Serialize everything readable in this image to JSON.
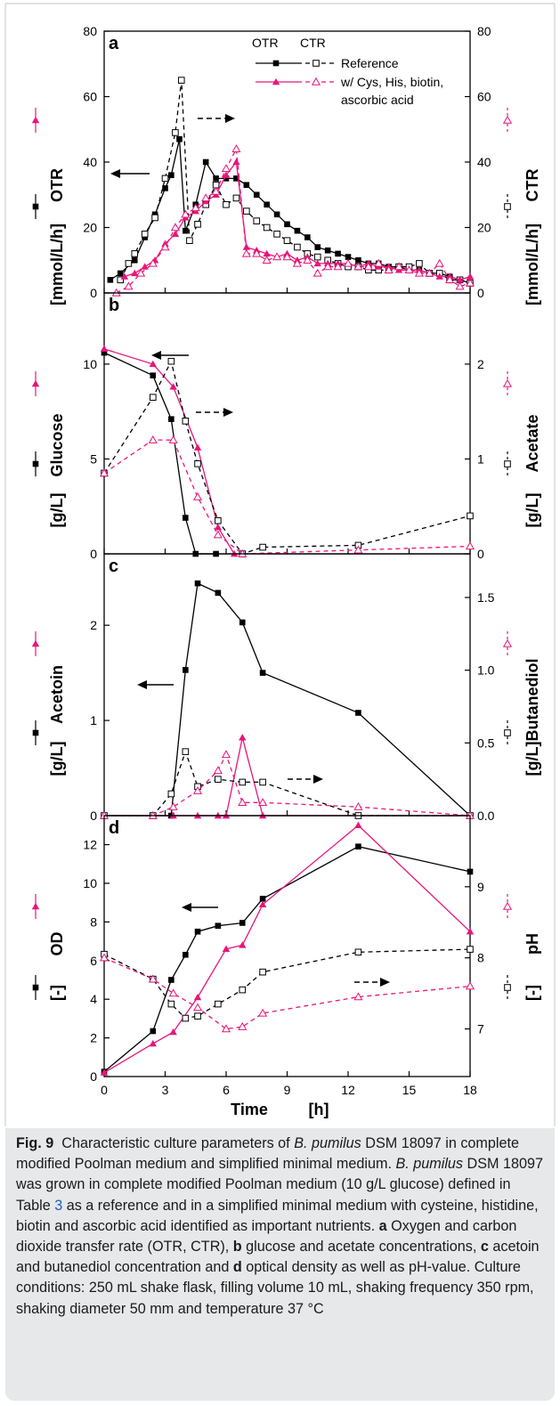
{
  "colors": {
    "reference": "#000000",
    "treatment": "#e8157a",
    "caption_bg": "#e7e8e9",
    "link": "#1f5fbf"
  },
  "figure": {
    "x_axis": {
      "label": "Time",
      "unit": "[h]",
      "ticks": [
        "0",
        "3",
        "6",
        "9",
        "12",
        "15",
        "18"
      ],
      "range": [
        0,
        18
      ]
    },
    "panels": [
      {
        "letter": "a",
        "y_left": {
          "label": "OTR",
          "unit": "[mmol/L/h]",
          "range": [
            0,
            80
          ],
          "ticks": [
            "0",
            "20",
            "40",
            "60",
            "80"
          ]
        },
        "y_right": {
          "label": "CTR",
          "unit": "[mmol/L/h]",
          "range": [
            0,
            80
          ],
          "ticks": [
            "0",
            "20",
            "40",
            "60",
            "80"
          ]
        },
        "legend": {
          "col_left": "OTR",
          "col_right": "CTR",
          "entries": [
            "Reference",
            "w/ Cys, His, biotin,",
            "ascorbic acid"
          ]
        }
      },
      {
        "letter": "b",
        "y_left": {
          "label": "Glucose",
          "unit": "[g/L]",
          "range": [
            0,
            13.75
          ],
          "ticks": [
            "0",
            "5",
            "10"
          ]
        },
        "y_right": {
          "label": "Acetate",
          "unit": "[g/L]",
          "range": [
            0,
            2.75
          ],
          "ticks": [
            "0",
            "1",
            "2"
          ]
        }
      },
      {
        "letter": "c",
        "y_left": {
          "label": "Acetoin",
          "unit": "[g/L]",
          "range": [
            0,
            2.75
          ],
          "ticks": [
            "0",
            "1",
            "2"
          ]
        },
        "y_right": {
          "label": "Butanediol",
          "unit": "[g/L]",
          "range": [
            0,
            1.8
          ],
          "ticks": [
            "0.0",
            "0.5",
            "1.0",
            "1.5"
          ]
        }
      },
      {
        "letter": "d",
        "y_left": {
          "label": "OD",
          "unit": "[-]",
          "range": [
            0,
            13.5
          ],
          "ticks": [
            "0",
            "2",
            "4",
            "6",
            "8",
            "10",
            "12"
          ]
        },
        "y_right": {
          "label": "pH",
          "unit": "[-]",
          "range": [
            6.33,
            10.0
          ],
          "ticks": [
            "7",
            "8",
            "9"
          ]
        }
      }
    ]
  },
  "chart_data": [
    {
      "type": "line",
      "panel": "a",
      "xlim": [
        0,
        18
      ],
      "ylim_left": [
        0,
        80
      ],
      "ylim_right": [
        0,
        80
      ],
      "series": [
        {
          "name": "OTR Reference",
          "axis": "left",
          "style": "solid",
          "marker": "filled-square",
          "color": "#000000",
          "x": [
            0.3,
            0.8,
            1.5,
            2.0,
            2.5,
            3.0,
            3.3,
            3.7,
            4.0,
            4.5,
            5.0,
            5.5,
            6.0,
            6.5,
            7.0,
            7.5,
            8.0,
            8.5,
            9.0,
            9.5,
            10.0,
            10.5,
            11.0,
            11.5,
            12.0,
            12.5,
            13.0,
            13.5,
            14.0,
            14.5,
            15.0,
            15.5,
            16.0,
            16.5,
            17.0,
            17.5,
            18.0
          ],
          "y": [
            4,
            6,
            10,
            17,
            24,
            32,
            36,
            47,
            19,
            27,
            40,
            35,
            35,
            35,
            33,
            30,
            27,
            24,
            21,
            19,
            17,
            14,
            13,
            12,
            11,
            10,
            9,
            9,
            8,
            8,
            7,
            7,
            6,
            6,
            5,
            4,
            3
          ]
        },
        {
          "name": "CTR Reference",
          "axis": "right",
          "style": "dashed",
          "marker": "open-square",
          "color": "#000000",
          "x": [
            0.8,
            1.2,
            1.5,
            2.0,
            2.5,
            3.0,
            3.5,
            3.8,
            4.2,
            4.6,
            5.0,
            5.5,
            6.0,
            6.5,
            7.0,
            7.5,
            8.0,
            8.5,
            9.0,
            9.5,
            10.0,
            10.5,
            11.0,
            11.5,
            12.0,
            12.5,
            13.0,
            13.5,
            14.0,
            14.5,
            15.0,
            15.5,
            16.0,
            16.5,
            17.0,
            17.5,
            18.0
          ],
          "y": [
            4,
            9,
            12,
            18,
            23,
            35,
            49,
            65,
            16,
            21,
            27,
            33,
            27,
            29,
            25,
            22,
            20,
            18,
            16,
            14,
            12,
            11,
            10,
            9,
            8,
            8,
            7,
            7,
            7,
            8,
            8,
            9,
            6,
            6,
            4,
            4,
            3
          ]
        },
        {
          "name": "OTR w/ Cys, His, biotin, ascorbic acid",
          "axis": "left",
          "style": "solid",
          "marker": "filled-triangle",
          "color": "#e8157a",
          "x": [
            1.0,
            1.5,
            2.0,
            2.5,
            3.0,
            3.5,
            4.0,
            4.5,
            5.0,
            5.5,
            6.0,
            6.5,
            7.0,
            7.5,
            8.0,
            8.5,
            9.0,
            9.5,
            10.0,
            10.5,
            11.0,
            11.5,
            12.0,
            12.5,
            13.0,
            13.5,
            14.0,
            14.5,
            15.0,
            15.5,
            16.0,
            16.5,
            17.0,
            17.5,
            18.0
          ],
          "y": [
            5,
            6,
            8,
            10,
            15,
            18,
            23,
            25,
            28,
            30,
            36,
            40,
            14,
            13,
            12,
            11,
            12,
            10,
            11,
            9,
            9,
            9,
            9,
            8,
            9,
            8,
            8,
            7,
            7,
            7,
            6,
            5,
            5,
            4,
            5
          ]
        },
        {
          "name": "CTR w/ Cys, His, biotin, ascorbic acid",
          "axis": "right",
          "style": "dashed",
          "marker": "open-triangle",
          "color": "#e8157a",
          "x": [
            0.6,
            1.2,
            1.8,
            2.4,
            3.0,
            3.5,
            4.0,
            4.5,
            5.0,
            5.5,
            6.0,
            6.5,
            7.0,
            7.5,
            8.0,
            8.5,
            9.0,
            9.5,
            10.0,
            10.5,
            11.0,
            11.5,
            12.0,
            12.5,
            13.0,
            13.5,
            14.0,
            14.5,
            15.0,
            15.5,
            16.0,
            16.5,
            17.0,
            17.5,
            18.0
          ],
          "y": [
            0,
            2,
            6,
            9,
            14,
            20,
            24,
            26,
            29,
            31,
            38,
            44,
            12,
            12,
            10,
            11,
            11,
            9,
            10,
            6,
            8,
            8,
            9,
            8,
            8,
            9,
            7,
            8,
            7,
            6,
            6,
            9,
            4,
            2,
            3
          ]
        }
      ]
    },
    {
      "type": "line",
      "panel": "b",
      "xlim": [
        0,
        18
      ],
      "ylim_left": [
        0,
        13.75
      ],
      "ylim_right": [
        0,
        2.75
      ],
      "series": [
        {
          "name": "Glucose Reference",
          "axis": "left",
          "style": "solid",
          "marker": "filled-square",
          "color": "#000000",
          "x": [
            0,
            2.4,
            3.3,
            4.0,
            4.5,
            5.5
          ],
          "y": [
            10.6,
            9.4,
            7.1,
            1.9,
            0,
            0
          ]
        },
        {
          "name": "Glucose w/ Cys, His, biotin, ascorbic acid",
          "axis": "left",
          "style": "solid",
          "marker": "filled-triangle",
          "color": "#e8157a",
          "x": [
            0,
            2.4,
            3.4,
            4.6,
            5.6,
            6.4
          ],
          "y": [
            10.8,
            10.0,
            8.8,
            5.6,
            1.4,
            0
          ]
        },
        {
          "name": "Acetate Reference",
          "axis": "right",
          "style": "dashed",
          "marker": "open-square",
          "color": "#000000",
          "x": [
            0,
            2.4,
            3.3,
            4.0,
            4.6,
            5.6,
            6.8,
            7.8,
            12.5,
            18.0
          ],
          "y": [
            0.85,
            1.65,
            2.03,
            1.4,
            0.95,
            0.35,
            0,
            0.07,
            0.09,
            0.4
          ]
        },
        {
          "name": "Acetate w/ Cys, His, biotin, ascorbic acid",
          "axis": "right",
          "style": "dashed",
          "marker": "open-triangle",
          "color": "#e8157a",
          "x": [
            0,
            2.4,
            3.4,
            4.6,
            5.6,
            6.8,
            12.5,
            18.0
          ],
          "y": [
            0.85,
            1.2,
            1.2,
            0.6,
            0.2,
            0,
            0.04,
            0.08
          ]
        }
      ]
    },
    {
      "type": "line",
      "panel": "c",
      "xlim": [
        0,
        18
      ],
      "ylim_left": [
        0,
        2.75
      ],
      "ylim_right": [
        0,
        1.8
      ],
      "series": [
        {
          "name": "Acetoin Reference",
          "axis": "left",
          "style": "solid",
          "marker": "filled-square",
          "color": "#000000",
          "x": [
            0,
            2.4,
            3.3,
            4.0,
            4.6,
            5.6,
            6.8,
            7.8,
            12.5,
            18.0
          ],
          "y": [
            0,
            0,
            0,
            1.53,
            2.44,
            2.34,
            2.03,
            1.5,
            1.08,
            0
          ]
        },
        {
          "name": "Acetoin w/ Cys, His, biotin, ascorbic acid",
          "axis": "left",
          "style": "solid",
          "marker": "filled-triangle",
          "color": "#e8157a",
          "x": [
            0,
            2.4,
            3.4,
            4.6,
            5.6,
            6.0,
            6.8,
            7.8,
            12.5,
            18.0
          ],
          "y": [
            0,
            0,
            0,
            0,
            0,
            0,
            0.82,
            0,
            0,
            0
          ]
        },
        {
          "name": "Butanediol Reference",
          "axis": "right",
          "style": "dashed",
          "marker": "open-square",
          "color": "#000000",
          "x": [
            0,
            2.4,
            3.3,
            4.0,
            4.6,
            5.6,
            6.8,
            7.8,
            12.5,
            18.0
          ],
          "y": [
            0,
            0,
            0.15,
            0.44,
            0.2,
            0.25,
            0.23,
            0.23,
            0,
            0
          ]
        },
        {
          "name": "Butanediol w/ Cys, His, biotin, ascorbic acid",
          "axis": "right",
          "style": "dashed",
          "marker": "open-triangle",
          "color": "#e8157a",
          "x": [
            0,
            2.4,
            3.4,
            4.6,
            5.6,
            6.0,
            6.8,
            7.8,
            12.5,
            18.0
          ],
          "y": [
            0,
            0,
            0.06,
            0.17,
            0.31,
            0.42,
            0.09,
            0.09,
            0.06,
            0
          ]
        }
      ]
    },
    {
      "type": "line",
      "panel": "d",
      "xlim": [
        0,
        18
      ],
      "ylim_left": [
        0,
        13.5
      ],
      "ylim_right": [
        6.33,
        10.0
      ],
      "series": [
        {
          "name": "OD Reference",
          "axis": "left",
          "style": "solid",
          "marker": "filled-square",
          "color": "#000000",
          "x": [
            0,
            2.4,
            3.3,
            4.0,
            4.6,
            5.6,
            6.8,
            7.8,
            12.5,
            18.0
          ],
          "y": [
            0.25,
            2.35,
            5.0,
            6.3,
            7.5,
            7.8,
            7.95,
            9.2,
            11.9,
            10.6
          ]
        },
        {
          "name": "OD w/ Cys, His, biotin, ascorbic acid",
          "axis": "left",
          "style": "solid",
          "marker": "filled-triangle",
          "color": "#e8157a",
          "x": [
            0,
            2.4,
            3.4,
            4.6,
            6.0,
            6.8,
            7.8,
            12.5,
            18.0
          ],
          "y": [
            0.2,
            1.7,
            2.3,
            4.1,
            6.6,
            6.8,
            8.9,
            13.0,
            7.5
          ]
        },
        {
          "name": "pH Reference",
          "axis": "right",
          "style": "dashed",
          "marker": "open-square",
          "color": "#000000",
          "x": [
            0,
            2.4,
            3.3,
            4.0,
            4.6,
            5.6,
            6.8,
            7.8,
            12.5,
            18.0
          ],
          "y": [
            8.05,
            7.7,
            7.35,
            7.15,
            7.18,
            7.35,
            7.55,
            7.8,
            8.08,
            8.12
          ]
        },
        {
          "name": "pH w/ Cys, His, biotin, ascorbic acid",
          "axis": "right",
          "style": "dashed",
          "marker": "open-triangle",
          "color": "#e8157a",
          "x": [
            0,
            2.4,
            3.4,
            4.6,
            6.0,
            6.8,
            7.8,
            12.5,
            18.0
          ],
          "y": [
            8.0,
            7.7,
            7.5,
            7.3,
            7.0,
            7.03,
            7.22,
            7.45,
            7.6
          ]
        }
      ]
    }
  ],
  "caption": {
    "fig_label": "Fig. 9",
    "intro": "Characteristic culture parameters of ",
    "organism": "B. pumilus",
    "strain_1": " DSM 18097 in complete modified Poolman medium and simplified minimal medium. ",
    "organism_2": "B. pumilus",
    "strain_2": " DSM 18097 was grown in complete modified Poolman medium (10 g/L glucose) defined in Table ",
    "table_ref": "3",
    "after_ref": " as a reference and in a simplified minimal medium with cysteine, histidine, biotin and ascorbic acid identified as important nutrients. ",
    "a_letter": "a",
    "a_text": " Oxygen and carbon dioxide transfer rate (OTR, CTR), ",
    "b_letter": "b",
    "b_text": " glucose and acetate concentrations, ",
    "c_letter": "c",
    "c_text": " acetoin and butanediol concentration and ",
    "d_letter": "d",
    "d_text": " optical density as well as pH-value. Culture conditions: 250 mL shake flask, filling volume 10 mL, shaking frequency 350 rpm, shaking diameter 50 mm and temperature 37 °C"
  }
}
